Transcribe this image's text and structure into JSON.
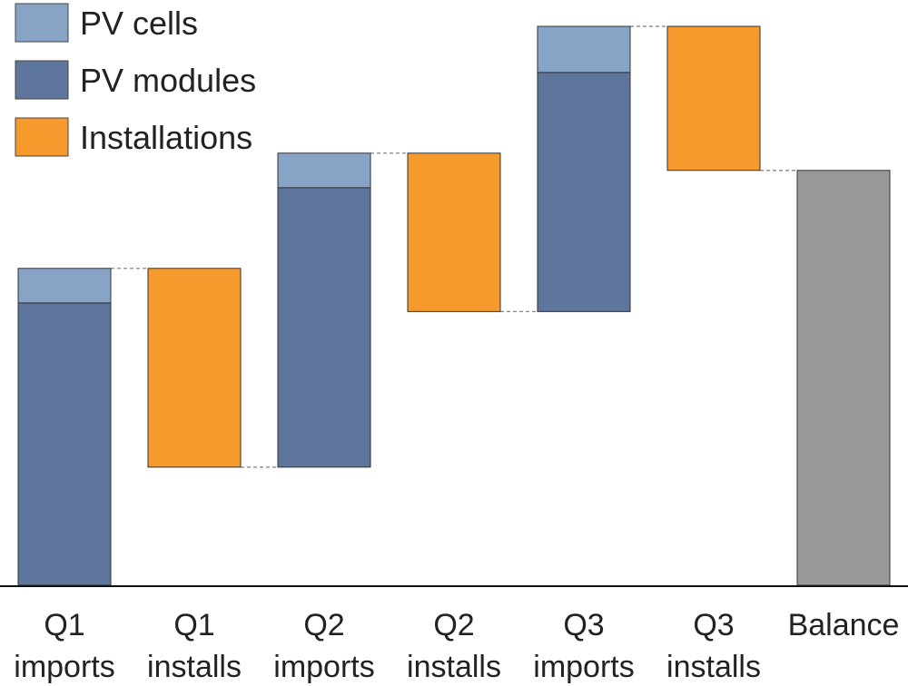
{
  "chart_data": {
    "type": "bar",
    "variant": "waterfall",
    "title": "",
    "xlabel": "",
    "ylabel": "",
    "ylim": [
      0,
      100
    ],
    "grid": false,
    "legend_position": "top-left",
    "legend": [
      {
        "key": "cells",
        "label": "PV cells",
        "color": "#87a4c7"
      },
      {
        "key": "modules",
        "label": "PV modules",
        "color": "#5e769c"
      },
      {
        "key": "installations",
        "label": "Installations",
        "color": "#f79a2e"
      }
    ],
    "balance_color": "#989898",
    "connector_color": "#888888",
    "categories": [
      {
        "line1": "Q1",
        "line2": "imports"
      },
      {
        "line1": "Q1",
        "line2": "installs"
      },
      {
        "line1": "Q2",
        "line2": "imports"
      },
      {
        "line1": "Q2",
        "line2": "installs"
      },
      {
        "line1": "Q3",
        "line2": "imports"
      },
      {
        "line1": "Q3",
        "line2": "installs"
      },
      {
        "line1": "Balance",
        "line2": ""
      }
    ],
    "bars": [
      {
        "kind": "import",
        "start": 0,
        "modules": 49,
        "cells": 6
      },
      {
        "kind": "install",
        "start": 55,
        "value": -34.5
      },
      {
        "kind": "import",
        "start": 20.5,
        "modules": 48.5,
        "cells": 6
      },
      {
        "kind": "install",
        "start": 75,
        "value": -27.5
      },
      {
        "kind": "import",
        "start": 47.5,
        "modules": 41.5,
        "cells": 8
      },
      {
        "kind": "install",
        "start": 97,
        "value": -25
      },
      {
        "kind": "balance",
        "start": 0,
        "value": 72
      }
    ]
  }
}
